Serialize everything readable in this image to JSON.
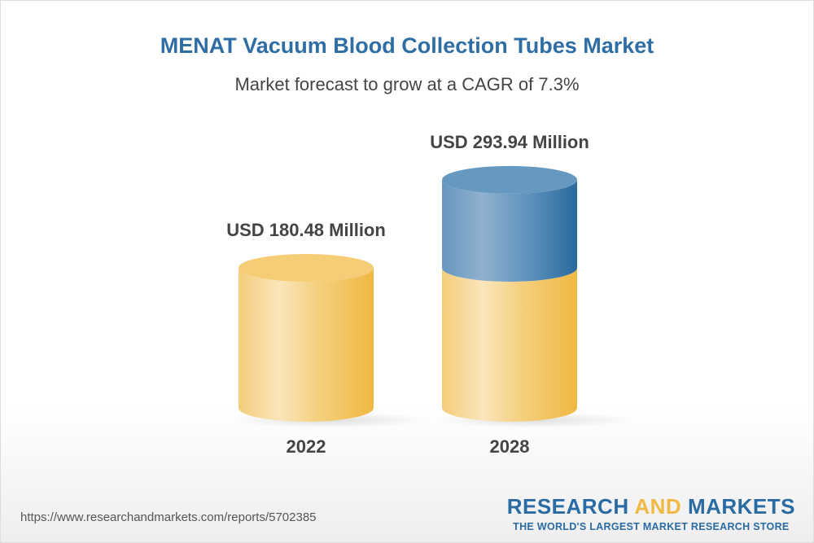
{
  "title": "MENAT Vacuum Blood Collection Tubes Market",
  "subtitle": "Market forecast to grow at a CAGR of 7.3%",
  "chart_data": {
    "type": "bar",
    "style": "3d-cylinder",
    "categories": [
      "2022",
      "2028"
    ],
    "values": [
      180.48,
      293.94
    ],
    "data_labels": [
      "USD 180.48 Million",
      "USD 293.94 Million"
    ],
    "unit": "USD Million",
    "colors": {
      "base": "#f3c765",
      "growth": "#3f7eae"
    }
  },
  "footer": {
    "source_url": "https://www.researchandmarkets.com/reports/5702385",
    "logo_part1": "RESEARCH ",
    "logo_part2": "AND",
    "logo_part3": " MARKETS",
    "tagline": "THE WORLD'S LARGEST MARKET RESEARCH STORE"
  }
}
